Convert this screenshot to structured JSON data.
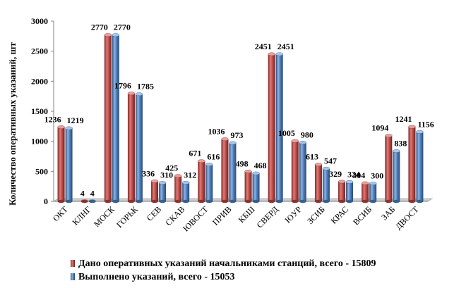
{
  "chart_data": {
    "type": "bar",
    "style": "3d-cylinder",
    "ylabel": "Количество оперативных указаний, шт",
    "xlabel": "",
    "ylim": [
      0,
      3000
    ],
    "yticks": [
      0,
      500,
      1000,
      1500,
      2000,
      2500,
      3000
    ],
    "grid": false,
    "legend_position": "bottom",
    "categories": [
      "ОКТ",
      "КЛНГ",
      "МОСК",
      "ГОРЬК",
      "СЕВ",
      "СКАВ",
      "ЮВОСТ",
      "ПРИВ",
      "КБШ",
      "СВЕРД",
      "ЮУР",
      "ЗСИБ",
      "КРАС",
      "ВСИБ",
      "ЗАБ",
      "ДВОСТ"
    ],
    "series": [
      {
        "name": "Дано оперативных указаний начальниками станций, всего - 15809",
        "color": "#c0504d",
        "values": [
          1236,
          4,
          2770,
          1796,
          336,
          425,
          671,
          1036,
          498,
          2451,
          1005,
          613,
          329,
          304,
          1094,
          1241
        ]
      },
      {
        "name": "Выполнено указаний, всего - 15053",
        "color": "#4f81bd",
        "values": [
          1219,
          4,
          2770,
          1785,
          310,
          312,
          616,
          973,
          468,
          2451,
          980,
          547,
          324,
          300,
          838,
          1156
        ]
      }
    ]
  }
}
